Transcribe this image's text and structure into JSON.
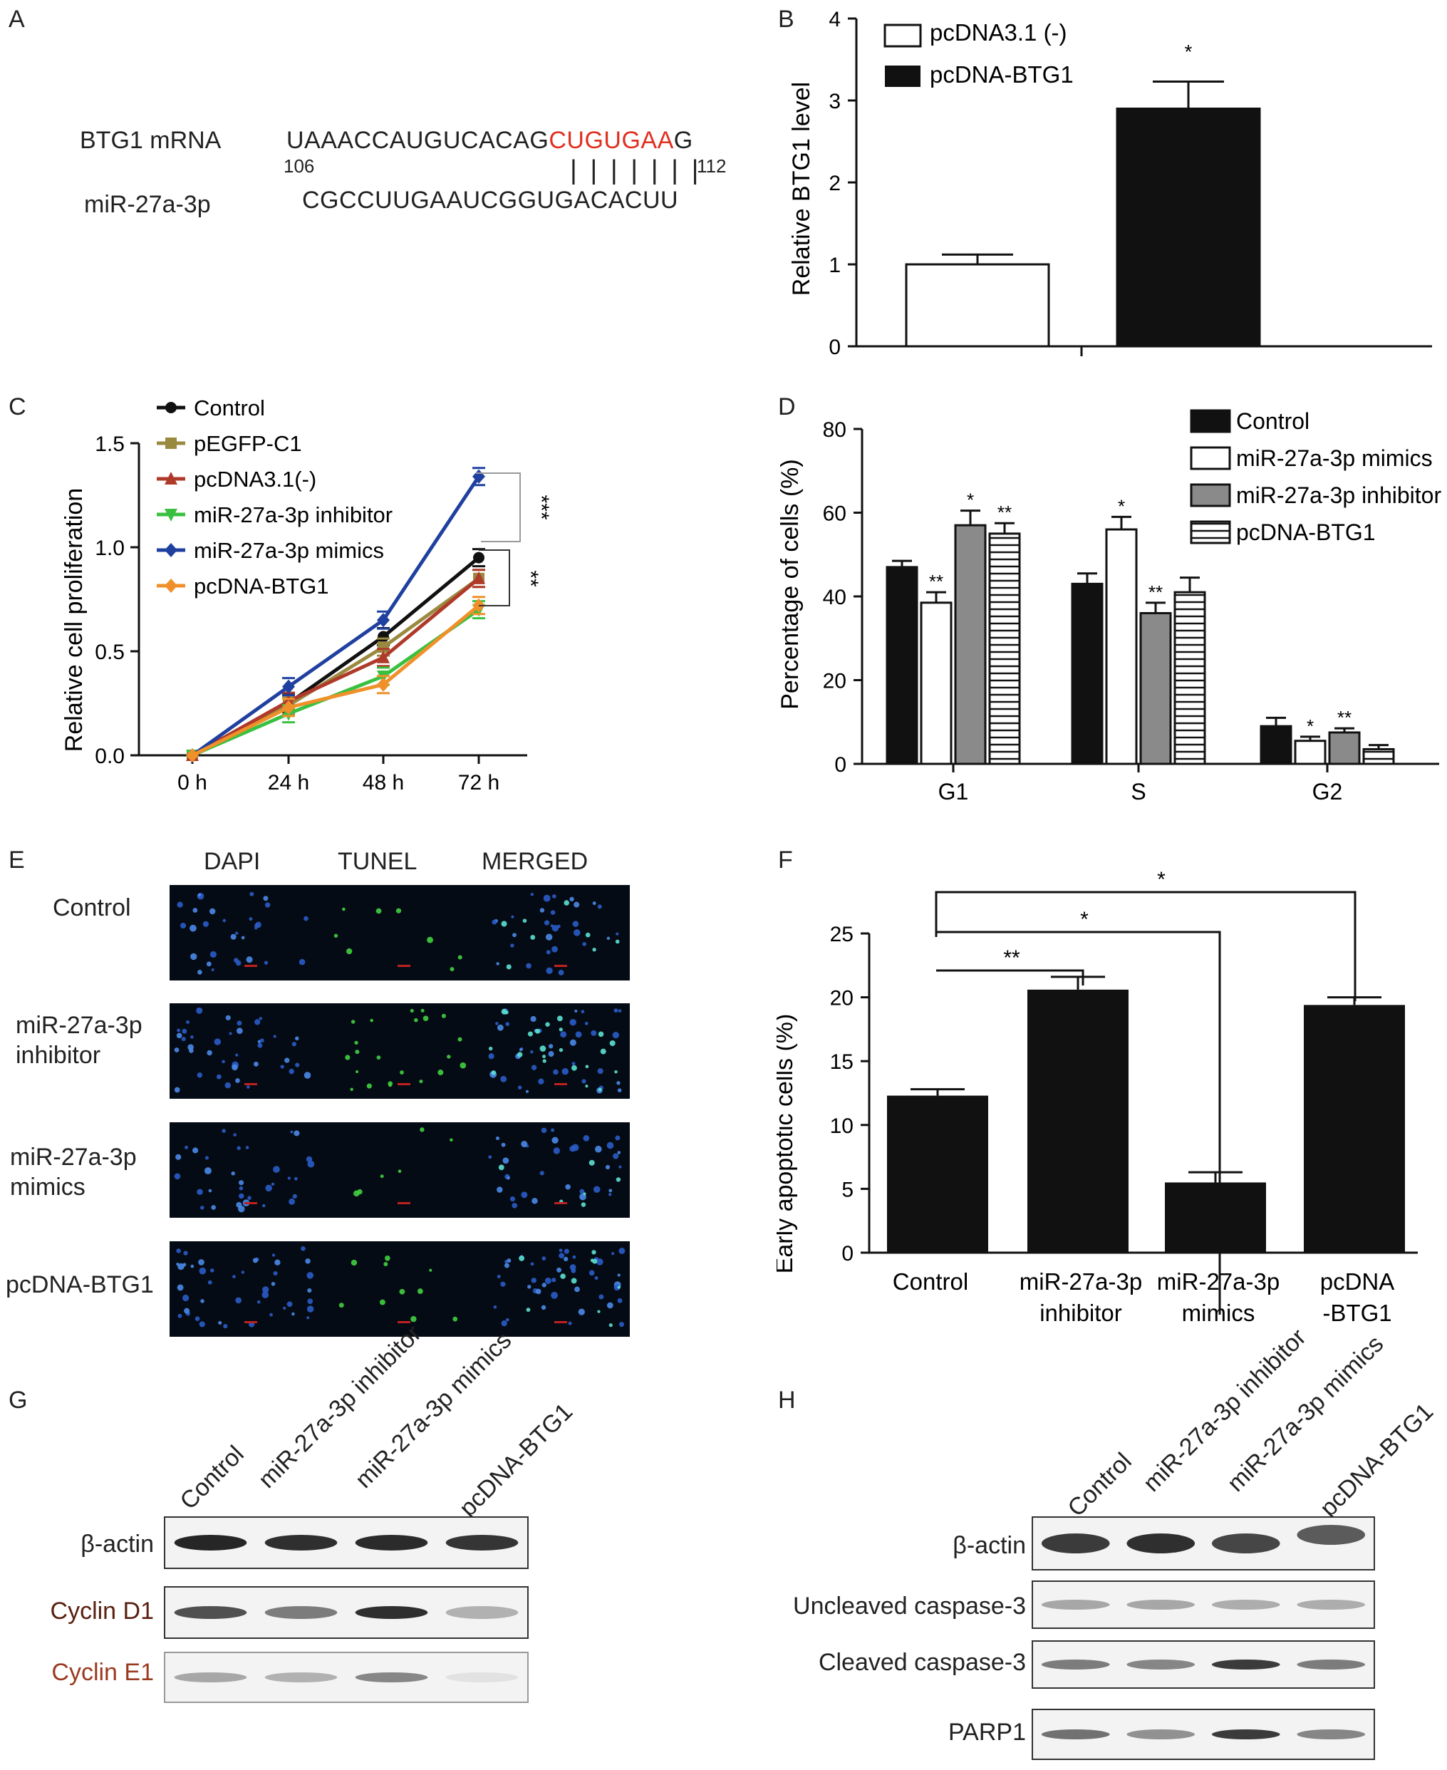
{
  "panels": {
    "A": {
      "label": "A",
      "row1_name": "BTG1 mRNA",
      "row1_seq_black": "UAAACCAUGUCACAG",
      "row1_seq_red": "CUGUGAA",
      "row1_seq_tail": "G",
      "pos_start": "106",
      "pos_end": "112",
      "pairing": "| | | | | | |",
      "row2_name": "miR-27a-3p",
      "row2_seq": "CGCCUUGAAUCGGUGACACUU",
      "highlight_color": "#e03020"
    },
    "B": {
      "label": "B",
      "significance": "*"
    },
    "C": {
      "label": "C",
      "sig1": "***",
      "sig2": "**"
    },
    "D": {
      "label": "D"
    },
    "E": {
      "label": "E",
      "columns": [
        "DAPI",
        "TUNEL",
        "MERGED"
      ],
      "rows": [
        "Control",
        "miR-27a-3p inhibitor",
        "miR-27a-3p mimics",
        "pcDNA-BTG1"
      ]
    },
    "F": {
      "label": "F",
      "sig_inhibitor": "**",
      "sig_mimics": "*",
      "sig_btg1": "*"
    },
    "G": {
      "label": "G",
      "lanes": [
        "Control",
        "miR-27a-3p inhibitor",
        "miR-27a-3p mimics",
        "pcDNA-BTG1"
      ],
      "rows": [
        "β-actin",
        "Cyclin D1",
        "Cyclin E1"
      ],
      "cyclin_d1_color": "#5a2010",
      "cyclin_e1_color": "#9a3a20"
    },
    "H": {
      "label": "H",
      "lanes": [
        "Control",
        "miR-27a-3p inhibitor",
        "miR-27a-3p mimics",
        "pcDNA-BTG1"
      ],
      "rows": [
        "β-actin",
        "Uncleaved caspase-3",
        "Cleaved caspase-3",
        "PARP1"
      ]
    }
  },
  "chart_data": [
    {
      "panel": "B",
      "type": "bar",
      "categories": [
        "pcDNA3.1 (-)",
        "pcDNA-BTG1"
      ],
      "values": [
        1.0,
        2.9
      ],
      "errors": [
        0.12,
        0.33
      ],
      "ylabel": "Relative BTG1 level",
      "ylim": [
        0,
        4
      ],
      "yticks": [
        "0",
        "1",
        "2",
        "3",
        "4"
      ],
      "legend": [
        "pcDNA3.1 (-)",
        "pcDNA-BTG1"
      ],
      "legend_position": "top-left"
    },
    {
      "panel": "C",
      "type": "line",
      "x": [
        "0 h",
        "24 h",
        "48 h",
        "72 h"
      ],
      "ylabel": "Relative cell proliferation",
      "ylim": [
        0,
        1.5
      ],
      "yticks": [
        "0.0",
        "0.5",
        "1.0",
        "1.5"
      ],
      "legend_position": "top-left",
      "series": [
        {
          "name": "Control",
          "values": [
            0,
            0.25,
            0.57,
            0.95
          ],
          "color": "#111111",
          "marker": "circle"
        },
        {
          "name": "pEGFP-C1",
          "values": [
            0,
            0.24,
            0.52,
            0.85
          ],
          "color": "#9a8a40",
          "marker": "square"
        },
        {
          "name": "pcDNA3.1(-)",
          "values": [
            0,
            0.26,
            0.47,
            0.85
          ],
          "color": "#b03a2a",
          "marker": "triangle"
        },
        {
          "name": "miR-27a-3p inhibitor",
          "values": [
            0,
            0.2,
            0.38,
            0.7
          ],
          "color": "#3ac040",
          "marker": "triangle-down"
        },
        {
          "name": "miR-27a-3p mimics",
          "values": [
            0,
            0.33,
            0.65,
            1.34
          ],
          "color": "#2040a0",
          "marker": "diamond"
        },
        {
          "name": "pcDNA-BTG1",
          "values": [
            0,
            0.23,
            0.34,
            0.72
          ],
          "color": "#f0902a",
          "marker": "diamond"
        }
      ]
    },
    {
      "panel": "D",
      "type": "bar",
      "categories": [
        "G1",
        "S",
        "G2"
      ],
      "ylabel": "Percentage of cells (%)",
      "ylim": [
        0,
        80
      ],
      "yticks": [
        "0",
        "20",
        "40",
        "60",
        "80"
      ],
      "legend_position": "top-right",
      "series": [
        {
          "name": "Control",
          "values": [
            47,
            43,
            9
          ],
          "errors": [
            1.5,
            2.5,
            2.0
          ],
          "sig": [
            "",
            "",
            ""
          ],
          "fill": "solid"
        },
        {
          "name": "miR-27a-3p mimics",
          "values": [
            38.5,
            56,
            5.5
          ],
          "errors": [
            2.5,
            3.0,
            1.0
          ],
          "sig": [
            "**",
            "*",
            "*"
          ],
          "fill": "white"
        },
        {
          "name": "miR-27a-3p inhibitor",
          "values": [
            57,
            36,
            7.5
          ],
          "errors": [
            3.5,
            2.5,
            1.0
          ],
          "sig": [
            "*",
            "**",
            "**"
          ],
          "fill": "gray"
        },
        {
          "name": "pcDNA-BTG1",
          "values": [
            55,
            41,
            3.5
          ],
          "errors": [
            2.5,
            3.5,
            1.0
          ],
          "sig": [
            "**",
            "",
            ""
          ],
          "fill": "hatch"
        }
      ]
    },
    {
      "panel": "F",
      "type": "bar",
      "categories": [
        "Control",
        "miR-27a-3p inhibitor",
        "miR-27a-3p mimics",
        "pcDNA -BTG1"
      ],
      "values": [
        12.3,
        20.6,
        5.5,
        19.4
      ],
      "errors": [
        0.5,
        1.0,
        0.8,
        0.6
      ],
      "ylabel": "Early apoptotic cells (%)",
      "ylim": [
        0,
        25
      ],
      "yticks": [
        "0",
        "5",
        "10",
        "15",
        "20",
        "25"
      ]
    }
  ]
}
